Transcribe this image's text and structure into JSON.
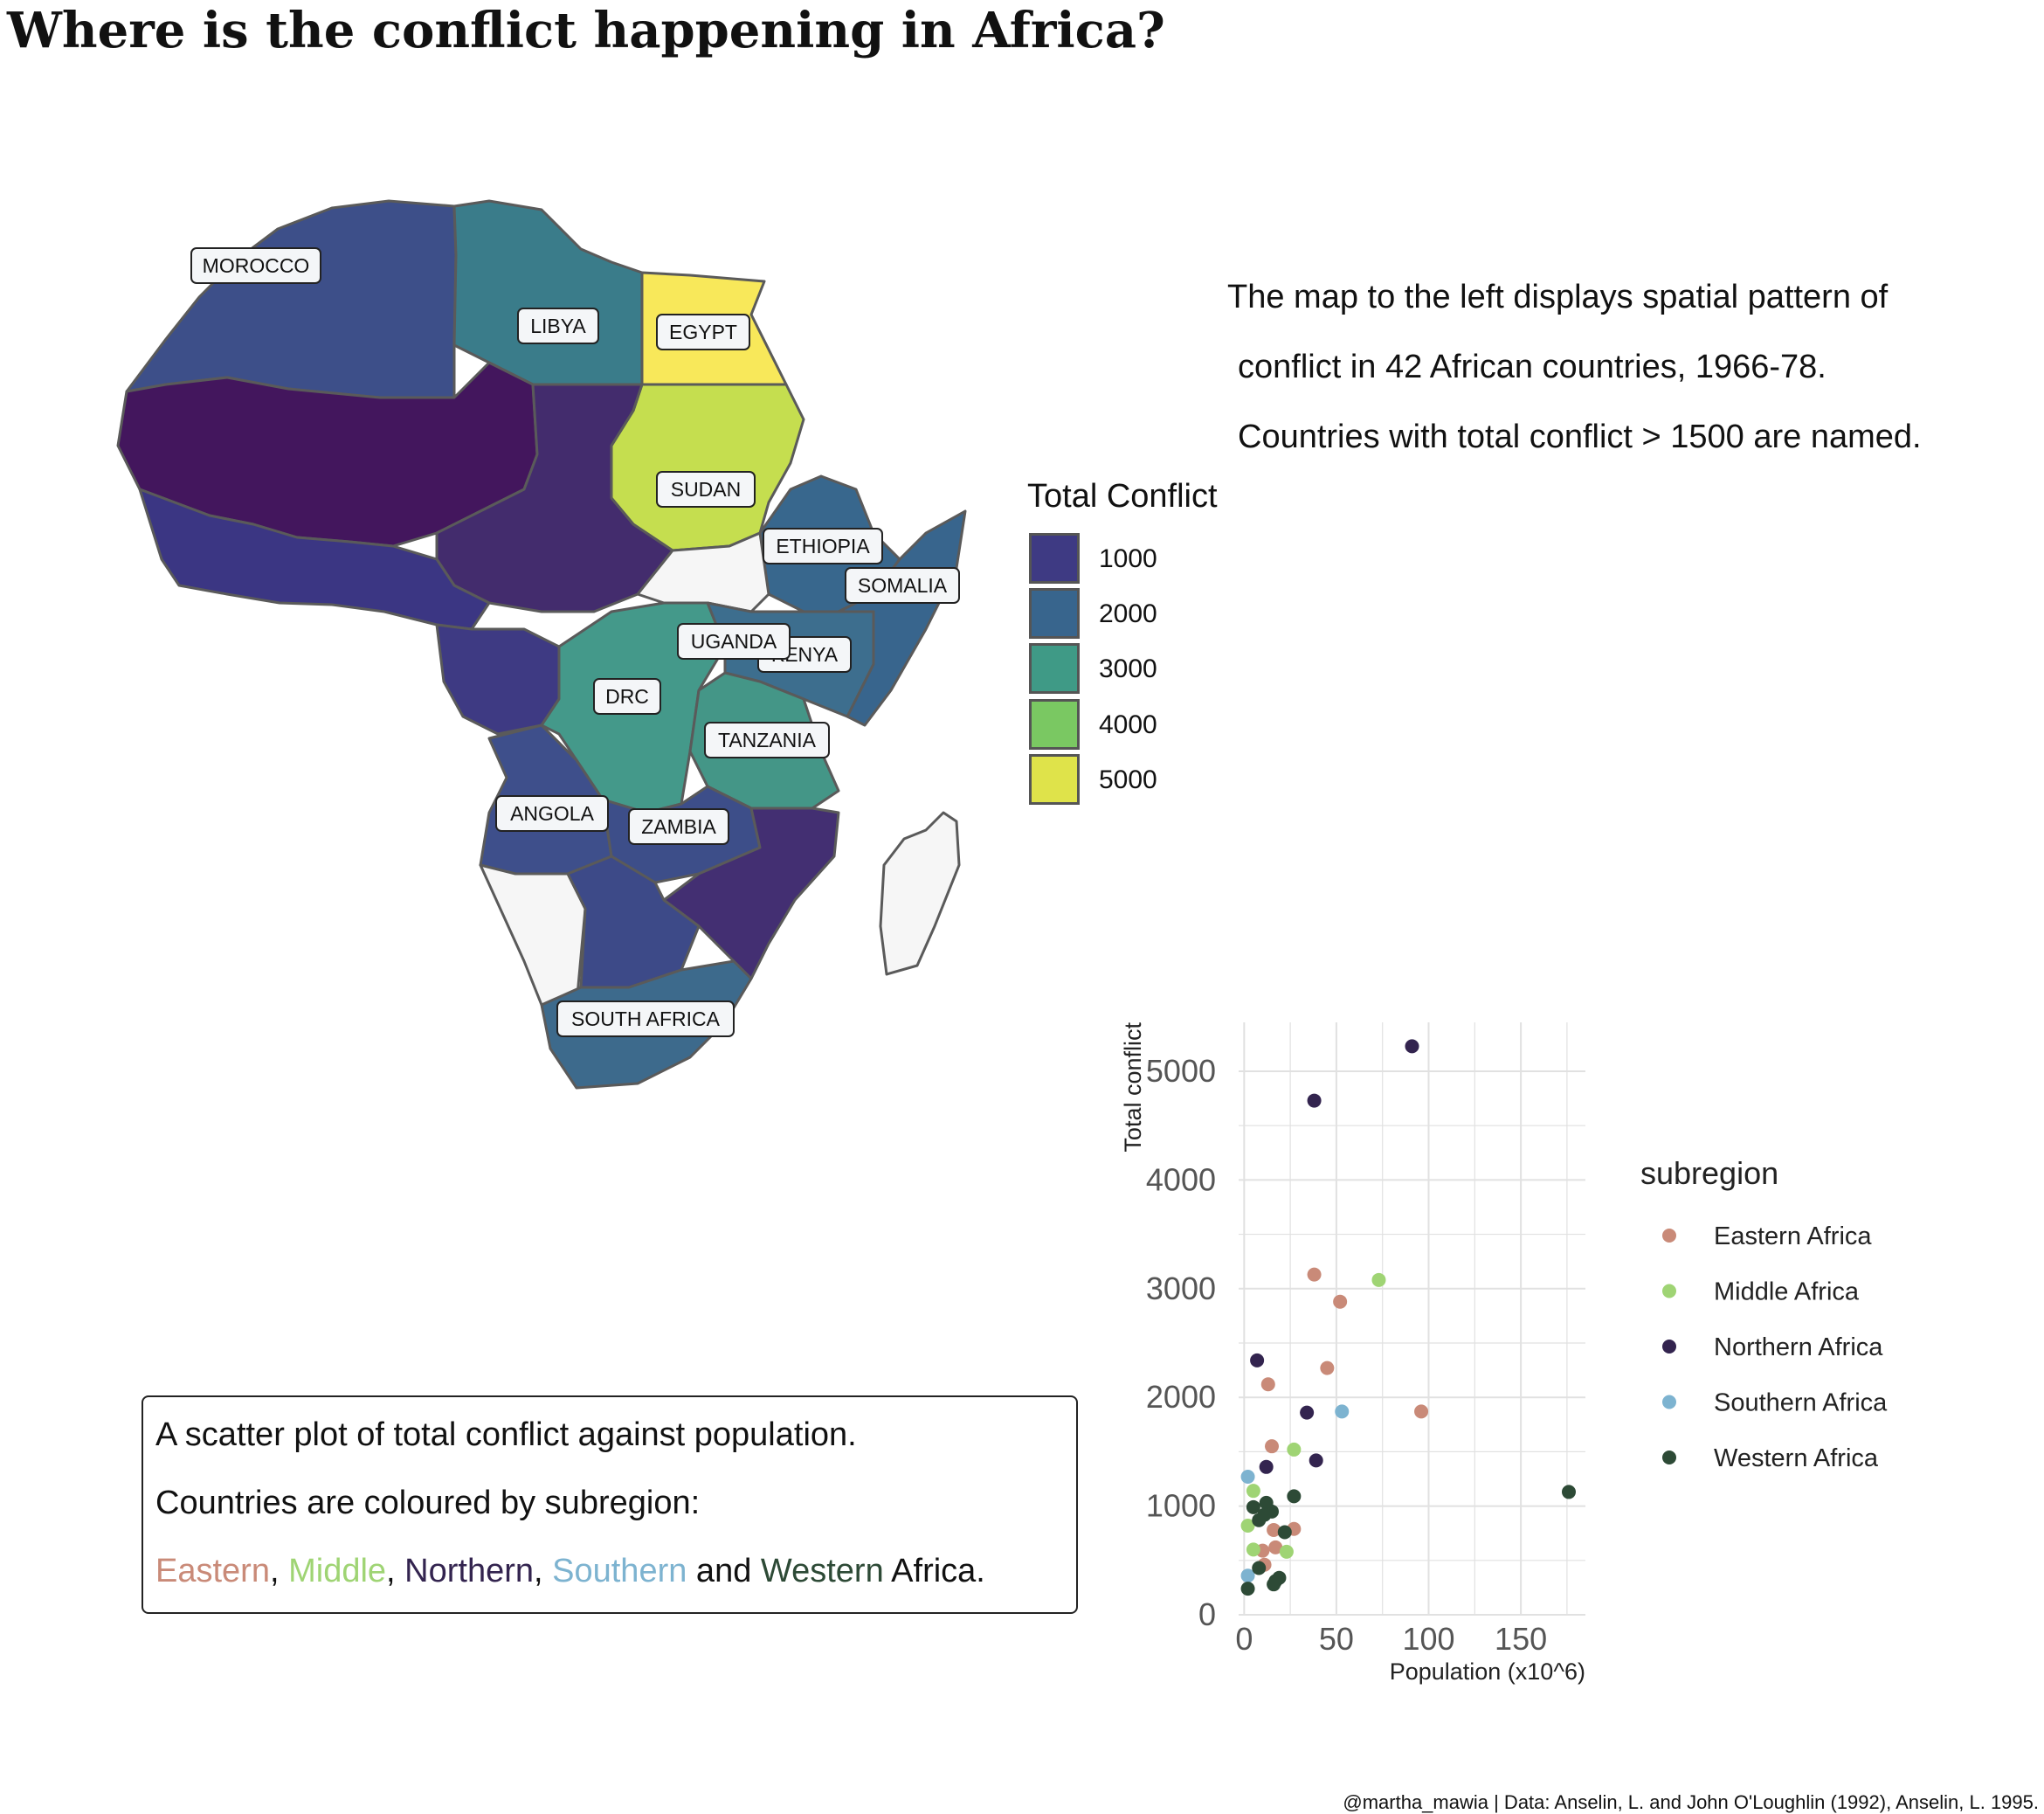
{
  "title": "Where is the conflict happening in Africa?",
  "description": [
    "The map to the left displays spatial pattern of",
    "conflict in 42 African countries, 1966-78.",
    "Countries with total conflict > 1500 are named."
  ],
  "map_legend": {
    "title": "Total Conflict",
    "items": [
      {
        "label": "1000",
        "color": "#3e3a83"
      },
      {
        "label": "2000",
        "color": "#38658d"
      },
      {
        "label": "3000",
        "color": "#3f9a86"
      },
      {
        "label": "4000",
        "color": "#7ac862"
      },
      {
        "label": "5000",
        "color": "#dfe34a"
      }
    ]
  },
  "map_labels": [
    "MOROCCO",
    "LIBYA",
    "EGYPT",
    "SUDAN",
    "ETHIOPIA",
    "SOMALIA",
    "UGANDA",
    "KENYA",
    "DRC",
    "TANZANIA",
    "ANGOLA",
    "ZAMBIA",
    "SOUTH AFRICA"
  ],
  "caption": {
    "line1": "A scatter plot of total conflict against population.",
    "line2": "Countries are coloured by subregion:",
    "eastern": "Eastern",
    "sep1": ", ",
    "middle": "Middle",
    "sep2": ", ",
    "northern": "Northern",
    "sep3": ", ",
    "southern": "Southern",
    "and": " and ",
    "western": "Western",
    "tail": " Africa."
  },
  "chart_data": {
    "type": "scatter",
    "xlabel": "Population (x10^6)",
    "ylabel": "Total conflict",
    "xlim": [
      -3,
      185
    ],
    "ylim": [
      0,
      5450
    ],
    "xticks": [
      0,
      50,
      100,
      150
    ],
    "yticks": [
      0,
      1000,
      2000,
      3000,
      4000,
      5000
    ],
    "grid": true,
    "legend_title": "subregion",
    "legend_placement": "right",
    "series": [
      {
        "name": "Eastern Africa",
        "color": "#c98a78",
        "points": [
          [
            38,
            3130
          ],
          [
            52,
            2880
          ],
          [
            45,
            2270
          ],
          [
            13,
            2120
          ],
          [
            96,
            1870
          ],
          [
            15,
            1550
          ],
          [
            16,
            780
          ],
          [
            17,
            620
          ],
          [
            10,
            590
          ],
          [
            11,
            460
          ],
          [
            27,
            790
          ]
        ]
      },
      {
        "name": "Middle Africa",
        "color": "#9fd474",
        "points": [
          [
            73,
            3080
          ],
          [
            27,
            1520
          ],
          [
            5,
            1140
          ],
          [
            2,
            820
          ],
          [
            5,
            600
          ],
          [
            23,
            580
          ]
        ]
      },
      {
        "name": "Northern Africa",
        "color": "#33244f",
        "points": [
          [
            91,
            5230
          ],
          [
            38,
            4730
          ],
          [
            7,
            2340
          ],
          [
            34,
            1860
          ],
          [
            39,
            1420
          ],
          [
            12,
            1360
          ]
        ]
      },
      {
        "name": "Southern Africa",
        "color": "#7db3d0",
        "points": [
          [
            53,
            1870
          ],
          [
            2,
            1270
          ],
          [
            2,
            360
          ]
        ]
      },
      {
        "name": "Western Africa",
        "color": "#2d4a36",
        "points": [
          [
            176,
            1130
          ],
          [
            27,
            1090
          ],
          [
            12,
            1030
          ],
          [
            15,
            950
          ],
          [
            5,
            990
          ],
          [
            8,
            870
          ],
          [
            11,
            920
          ],
          [
            22,
            760
          ],
          [
            8,
            430
          ],
          [
            17,
            310
          ],
          [
            19,
            340
          ],
          [
            2,
            240
          ],
          [
            16,
            280
          ]
        ]
      }
    ]
  },
  "credit": "@martha_mawia | Data: Anselin, L. and John O'Loughlin (1992), Anselin, L. 1995."
}
